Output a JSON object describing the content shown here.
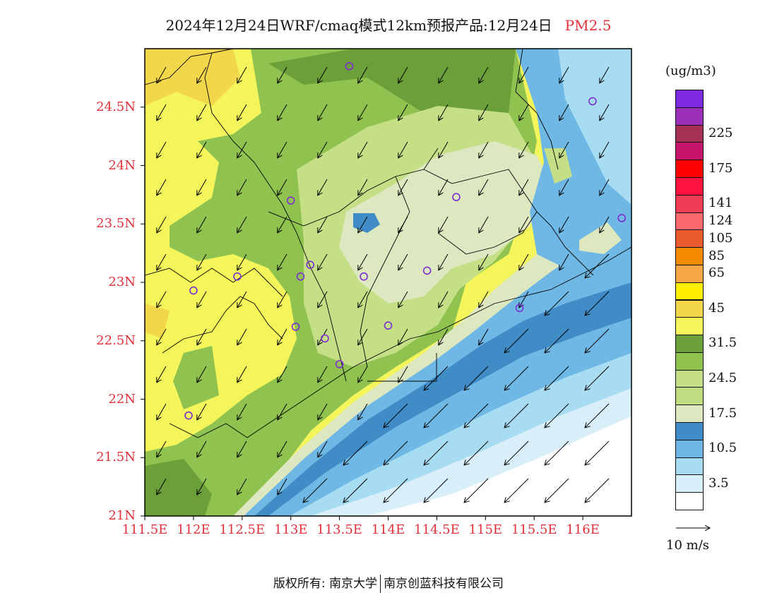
{
  "title": {
    "text": "2024年12月24日WRF/cmaq模式12km预报产品:12月24日",
    "pollutant": "PM2.5"
  },
  "map": {
    "lon_range": [
      111.5,
      116.5
    ],
    "lat_range": [
      21,
      25
    ],
    "lat_ticks": [
      {
        "value": 21,
        "label": "21N"
      },
      {
        "value": 21.5,
        "label": "21.5N"
      },
      {
        "value": 22,
        "label": "22N"
      },
      {
        "value": 22.5,
        "label": "22.5N"
      },
      {
        "value": 23,
        "label": "23N"
      },
      {
        "value": 23.5,
        "label": "23.5N"
      },
      {
        "value": 24,
        "label": "24N"
      },
      {
        "value": 24.5,
        "label": "24.5N"
      }
    ],
    "lon_ticks": [
      {
        "value": 111.5,
        "label": "111.5E"
      },
      {
        "value": 112,
        "label": "112E"
      },
      {
        "value": 112.5,
        "label": "112.5E"
      },
      {
        "value": 113,
        "label": "113E"
      },
      {
        "value": 113.5,
        "label": "113.5E"
      },
      {
        "value": 114,
        "label": "114E"
      },
      {
        "value": 114.5,
        "label": "114.5E"
      },
      {
        "value": 115,
        "label": "115E"
      },
      {
        "value": 115.5,
        "label": "115.5E"
      },
      {
        "value": 116,
        "label": "116E"
      }
    ],
    "cities": [
      {
        "lon": 113.6,
        "lat": 24.85
      },
      {
        "lon": 116.1,
        "lat": 24.55
      },
      {
        "lon": 114.7,
        "lat": 23.73
      },
      {
        "lon": 113.0,
        "lat": 23.7
      },
      {
        "lon": 116.4,
        "lat": 23.55
      },
      {
        "lon": 113.2,
        "lat": 23.15
      },
      {
        "lon": 112.45,
        "lat": 23.05
      },
      {
        "lon": 113.1,
        "lat": 23.05
      },
      {
        "lon": 113.75,
        "lat": 23.05
      },
      {
        "lon": 114.4,
        "lat": 23.1
      },
      {
        "lon": 112.0,
        "lat": 22.93
      },
      {
        "lon": 115.35,
        "lat": 22.78
      },
      {
        "lon": 113.05,
        "lat": 22.62
      },
      {
        "lon": 113.35,
        "lat": 22.52
      },
      {
        "lon": 114.0,
        "lat": 22.63
      },
      {
        "lon": 113.5,
        "lat": 22.3
      },
      {
        "lon": 111.95,
        "lat": 21.86
      }
    ],
    "wind_direction": "northeasterly",
    "wind_land_length": 0.55,
    "wind_sea_length": 1.0
  },
  "colorbar": {
    "units": "(ug/m3)",
    "bins": [
      {
        "color": "#ffffff"
      },
      {
        "color": "#d8eef8"
      },
      {
        "color": "#a7dcf3"
      },
      {
        "color": "#6fb7e4"
      },
      {
        "color": "#3f8cc6"
      },
      {
        "color": "#dde8c0"
      },
      {
        "color": "#bfdc80"
      },
      {
        "color": "#c4df86"
      },
      {
        "color": "#8fc24e"
      },
      {
        "color": "#6a9f3a"
      },
      {
        "color": "#f3f55a"
      },
      {
        "color": "#f3d74a"
      },
      {
        "color": "#ffee00"
      },
      {
        "color": "#f5a845"
      },
      {
        "color": "#f48a00"
      },
      {
        "color": "#ea5b2e"
      },
      {
        "color": "#fb6b6e"
      },
      {
        "color": "#f03c56"
      },
      {
        "color": "#ff1240"
      },
      {
        "color": "#ff0000"
      },
      {
        "color": "#c8156c"
      },
      {
        "color": "#a63054"
      },
      {
        "color": "#9a2fb8"
      },
      {
        "color": "#7e28e0"
      }
    ],
    "labels": [
      {
        "after_bin": 1,
        "text": "3.5"
      },
      {
        "after_bin": 3,
        "text": "10.5"
      },
      {
        "after_bin": 5,
        "text": "17.5"
      },
      {
        "after_bin": 7,
        "text": "24.5"
      },
      {
        "after_bin": 9,
        "text": "31.5"
      },
      {
        "after_bin": 11,
        "text": "45"
      },
      {
        "after_bin": 13,
        "text": "65"
      },
      {
        "after_bin": 14,
        "text": "85"
      },
      {
        "after_bin": 15,
        "text": "105"
      },
      {
        "after_bin": 16,
        "text": "124"
      },
      {
        "after_bin": 17,
        "text": "141"
      },
      {
        "after_bin": 19,
        "text": "175"
      },
      {
        "after_bin": 21,
        "text": "225"
      }
    ]
  },
  "reference_vector": {
    "label": "10 m/s"
  },
  "footer": {
    "left": "版权所有: 南京大学",
    "right": "南京创蓝科技有限公司"
  }
}
